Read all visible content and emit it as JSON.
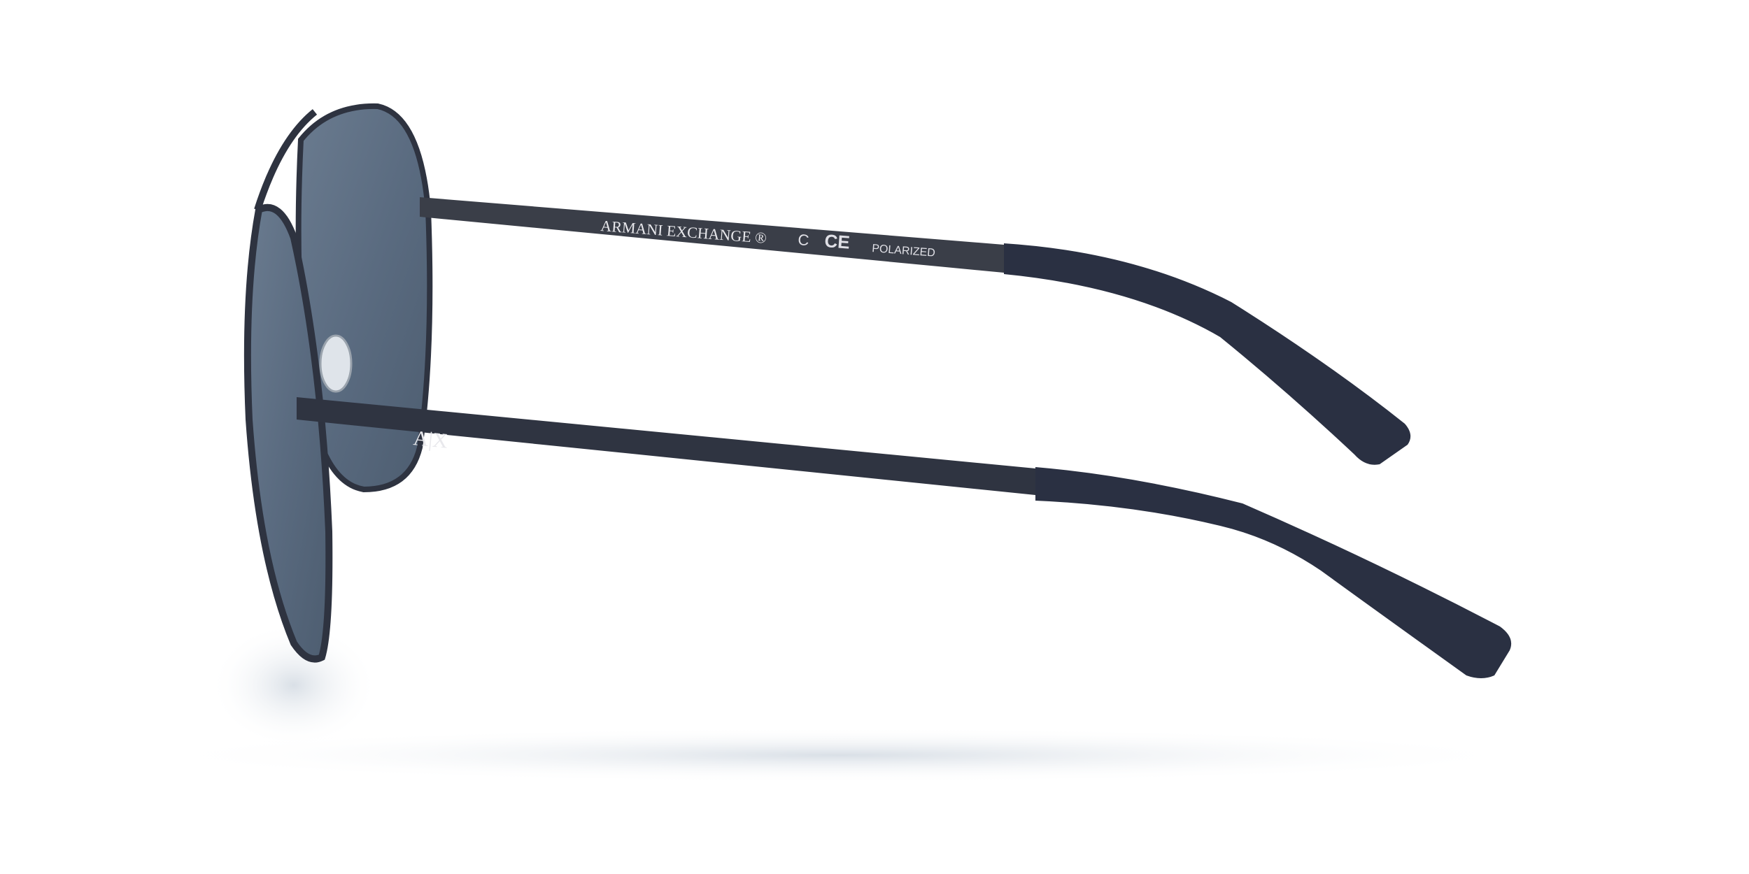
{
  "product": {
    "brand_print": "ARMANI EXCHANGE ®",
    "mark_c": "C",
    "mark_ce": "CE",
    "lens_print": "POLARIZED",
    "logo": "A|X"
  },
  "colors": {
    "background": "#ffffff",
    "frame": "#2e3340",
    "lens": "#5b6c80",
    "temple_tip": "#2a3042"
  }
}
